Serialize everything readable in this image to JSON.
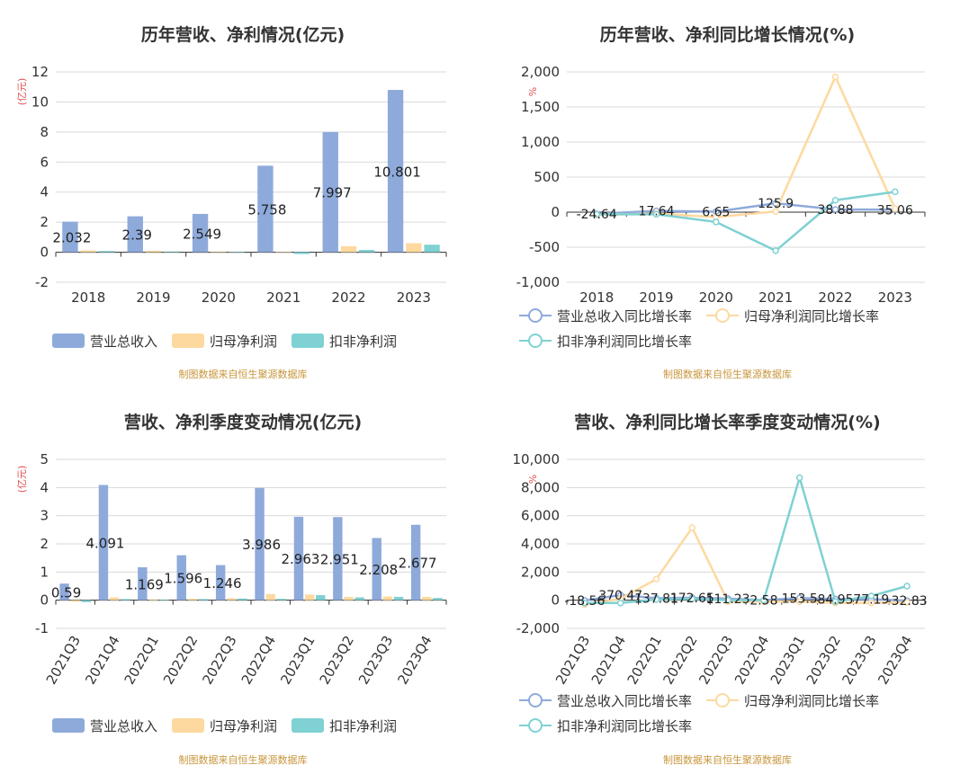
{
  "colors": {
    "revenue": "#8eaadb",
    "net_profit": "#fdd9a0",
    "deducted_profit": "#7fd1d3"
  },
  "source_note": "制图数据来自恒生聚源数据库",
  "legend_bar": [
    "营业总收入",
    "归母净利润",
    "扣非净利润"
  ],
  "legend_line": [
    "营业总收入同比增长率",
    "归母净利润同比增长率",
    "扣非净利润同比增长率"
  ],
  "chart_data": [
    {
      "id": "annual_amounts",
      "type": "bar",
      "title": "历年营收、净利情况(亿元)",
      "ylabel": "(亿元)",
      "ylim": [
        -2,
        12
      ],
      "yticks": [
        -2,
        0,
        2,
        4,
        6,
        8,
        10,
        12
      ],
      "categories": [
        "2018",
        "2019",
        "2020",
        "2021",
        "2022",
        "2023"
      ],
      "series": [
        {
          "name": "营业总收入",
          "values": [
            2.032,
            2.39,
            2.549,
            5.758,
            7.997,
            10.801
          ]
        },
        {
          "name": "归母净利润",
          "values": [
            0.12,
            0.1,
            0.03,
            0.02,
            0.4,
            0.6
          ]
        },
        {
          "name": "扣非净利润",
          "values": [
            0.08,
            0.05,
            -0.02,
            -0.12,
            0.15,
            0.5
          ]
        }
      ],
      "data_labels": [
        "2.032",
        "2.39",
        "2.549",
        "5.758",
        "7.997",
        "10.801"
      ]
    },
    {
      "id": "annual_growth",
      "type": "line",
      "title": "历年营收、净利同比增长情况(%)",
      "ylabel": "%",
      "ylim": [
        -1000,
        2000
      ],
      "yticks": [
        -1000,
        -500,
        0,
        500,
        1000,
        1500,
        2000
      ],
      "yticklabels": [
        "-1,000",
        "-500",
        "0",
        "500",
        "1,000",
        "1,500",
        "2,000"
      ],
      "categories": [
        "2018",
        "2019",
        "2020",
        "2021",
        "2022",
        "2023"
      ],
      "series": [
        {
          "name": "营业总收入同比增长率",
          "values": [
            -24.64,
            17.64,
            6.65,
            125.9,
            38.88,
            35.06
          ]
        },
        {
          "name": "归母净利润同比增长率",
          "values": [
            -40,
            -20,
            -70,
            10,
            1930,
            50
          ]
        },
        {
          "name": "扣非净利润同比增长率",
          "values": [
            -30,
            -30,
            -140,
            -550,
            170,
            290
          ]
        }
      ],
      "data_labels": [
        "-24.64",
        "17.64",
        "6.65",
        "125.9",
        "38.88",
        "35.06"
      ]
    },
    {
      "id": "quarterly_amounts",
      "type": "bar",
      "title": "营收、净利季度变动情况(亿元)",
      "ylabel": "(亿元)",
      "ylim": [
        -1,
        5
      ],
      "yticks": [
        -1,
        0,
        1,
        2,
        3,
        4,
        5
      ],
      "categories": [
        "2021Q3",
        "2021Q4",
        "2022Q1",
        "2022Q2",
        "2022Q3",
        "2022Q4",
        "2023Q1",
        "2023Q2",
        "2023Q3",
        "2023Q4"
      ],
      "series": [
        {
          "name": "营业总收入",
          "values": [
            0.59,
            4.091,
            1.169,
            1.596,
            1.246,
            3.986,
            2.963,
            2.951,
            2.208,
            2.677
          ]
        },
        {
          "name": "归母净利润",
          "values": [
            -0.05,
            0.1,
            0.03,
            0.05,
            0.07,
            0.22,
            0.2,
            0.12,
            0.13,
            0.12
          ]
        },
        {
          "name": "扣非净利润",
          "values": [
            -0.07,
            0.04,
            0.02,
            0.04,
            0.06,
            0.05,
            0.18,
            0.1,
            0.12,
            0.08
          ]
        }
      ],
      "data_labels": [
        "0.59",
        "4.091",
        "1.169",
        "1.596",
        "1.246",
        "3.986",
        "2.963",
        "2.951",
        "2.208",
        "2.677"
      ]
    },
    {
      "id": "quarterly_growth",
      "type": "line",
      "title": "营收、净利同比增长率季度变动情况(%)",
      "ylabel": "%",
      "ylim": [
        -2000,
        10000
      ],
      "yticks": [
        -2000,
        0,
        2000,
        4000,
        6000,
        8000,
        10000
      ],
      "yticklabels": [
        "-2,000",
        "0",
        "2,000",
        "4,000",
        "6,000",
        "8,000",
        "10,000"
      ],
      "categories": [
        "2021Q3",
        "2021Q4",
        "2022Q1",
        "2022Q2",
        "2022Q3",
        "2022Q4",
        "2023Q1",
        "2023Q2",
        "2023Q3",
        "2023Q4"
      ],
      "series": [
        {
          "name": "营业总收入同比增长率",
          "values": [
            -18.56,
            370.47,
            137.81,
            172.65,
            111.23,
            2.58,
            153.5,
            84.95,
            77.19,
            -32.83
          ]
        },
        {
          "name": "归母净利润同比增长率",
          "values": [
            -300,
            100,
            1500,
            5150,
            -100,
            -100,
            -100,
            -200,
            -200,
            -150
          ]
        },
        {
          "name": "扣非净利润同比增长率",
          "values": [
            -200,
            -200,
            50,
            100,
            0,
            0,
            8700,
            -100,
            300,
            1000
          ]
        }
      ],
      "data_labels": [
        "-18.56",
        "370.47",
        "137.81",
        "172.65",
        "111.23",
        "2.58",
        "153.5",
        "84.95",
        "77.19",
        "-32.83"
      ]
    }
  ]
}
